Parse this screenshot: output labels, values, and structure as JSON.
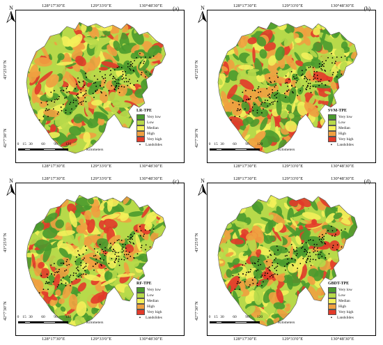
{
  "panels": [
    {
      "label": "(a)",
      "title": "LR-TPE"
    },
    {
      "label": "(b)",
      "title": "SVM-TPE"
    },
    {
      "label": "(c)",
      "title": "RF-TPE"
    },
    {
      "label": "(d)",
      "title": "GBDT-TPE"
    }
  ],
  "north": "N",
  "longitudes": [
    "128°17′30″E",
    "129°33′0″E",
    "130°48′30″E"
  ],
  "latitudes": [
    "43°25′0″N",
    "42°7′30″N"
  ],
  "scale": {
    "ticks": [
      "0",
      "15",
      "30",
      "60",
      "90",
      "120"
    ],
    "unit": "Kilometers"
  },
  "legend": [
    {
      "label": "Very low",
      "color": "#4a9a2e"
    },
    {
      "label": "Low",
      "color": "#b7d94a"
    },
    {
      "label": "Median",
      "color": "#f3f05a"
    },
    {
      "label": "High",
      "color": "#f0a040"
    },
    {
      "label": "Very high",
      "color": "#e23a2a"
    }
  ],
  "landslides_label": "Landslides"
}
